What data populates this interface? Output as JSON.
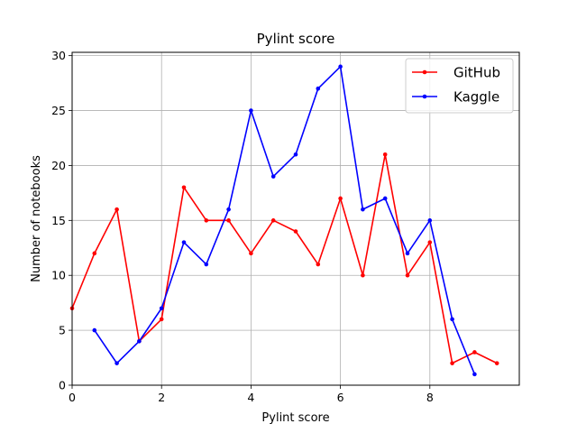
{
  "chart_data": {
    "type": "line",
    "title": "Pylint score",
    "xlabel": "Pylint score",
    "ylabel": "Number of notebooks",
    "xlim": [
      0,
      10
    ],
    "ylim": [
      0,
      30.3
    ],
    "xticks": [
      0,
      2,
      4,
      6,
      8
    ],
    "yticks": [
      0,
      5,
      10,
      15,
      20,
      25,
      30
    ],
    "grid": true,
    "legend_position": "top-right",
    "series": [
      {
        "name": "GitHub",
        "color": "#ff0000",
        "x": [
          0,
          0.5,
          1,
          1.5,
          2,
          2.5,
          3,
          3.5,
          4,
          4.5,
          5,
          5.5,
          6,
          6.5,
          7,
          7.5,
          8,
          8.5,
          9,
          9.5
        ],
        "values": [
          7,
          12,
          16,
          4,
          6,
          18,
          15,
          15,
          12,
          15,
          14,
          11,
          17,
          10,
          21,
          10,
          13,
          2,
          3,
          2
        ]
      },
      {
        "name": "Kaggle",
        "color": "#0000ff",
        "x": [
          0.5,
          1,
          1.5,
          2,
          2.5,
          3,
          3.5,
          4,
          4.5,
          5,
          5.5,
          6,
          6.5,
          7,
          7.5,
          8,
          8.5,
          9
        ],
        "values": [
          5,
          2,
          4,
          7,
          13,
          11,
          16,
          25,
          19,
          21,
          27,
          29,
          16,
          17,
          12,
          15,
          6,
          1
        ]
      }
    ]
  }
}
